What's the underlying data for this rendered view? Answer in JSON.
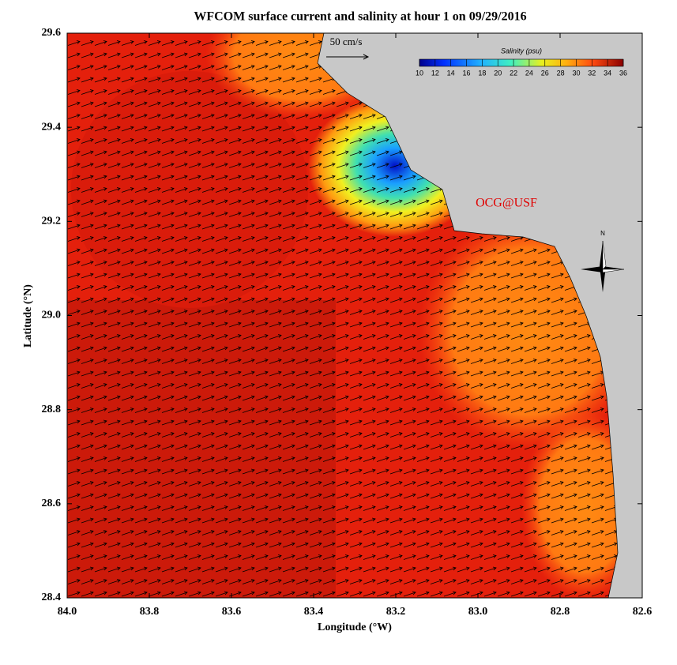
{
  "chart_data": {
    "type": "map",
    "title": "WFCOM surface current and salinity at hour 1 on 09/29/2016",
    "xlabel": "Longitude (°W)",
    "ylabel": "Latitude (°N)",
    "xlim": [
      84.0,
      82.6
    ],
    "ylim": [
      28.4,
      29.6
    ],
    "xticks": [
      {
        "value": 84.0,
        "label": "84.0"
      },
      {
        "value": 83.8,
        "label": "83.8"
      },
      {
        "value": 83.6,
        "label": "83.6"
      },
      {
        "value": 83.4,
        "label": "83.4"
      },
      {
        "value": 83.2,
        "label": "83.2"
      },
      {
        "value": 83.0,
        "label": "83.0"
      },
      {
        "value": 82.8,
        "label": "82.8"
      },
      {
        "value": 82.6,
        "label": "82.6"
      }
    ],
    "yticks": [
      {
        "value": 28.4,
        "label": "28.4"
      },
      {
        "value": 28.6,
        "label": "28.6"
      },
      {
        "value": 28.8,
        "label": "28.8"
      },
      {
        "value": 29.0,
        "label": "29.0"
      },
      {
        "value": 29.2,
        "label": "29.2"
      },
      {
        "value": 29.4,
        "label": "29.4"
      },
      {
        "value": 29.6,
        "label": "29.6"
      }
    ],
    "colorbar": {
      "title": "Salinity (psu)",
      "range": [
        10,
        36
      ],
      "ticks": [
        10,
        12,
        14,
        16,
        18,
        20,
        22,
        24,
        26,
        28,
        30,
        32,
        34,
        36
      ]
    },
    "vector_scale_label": "50 cm/s",
    "credit": "OCG@USF",
    "compass_label": "N"
  }
}
